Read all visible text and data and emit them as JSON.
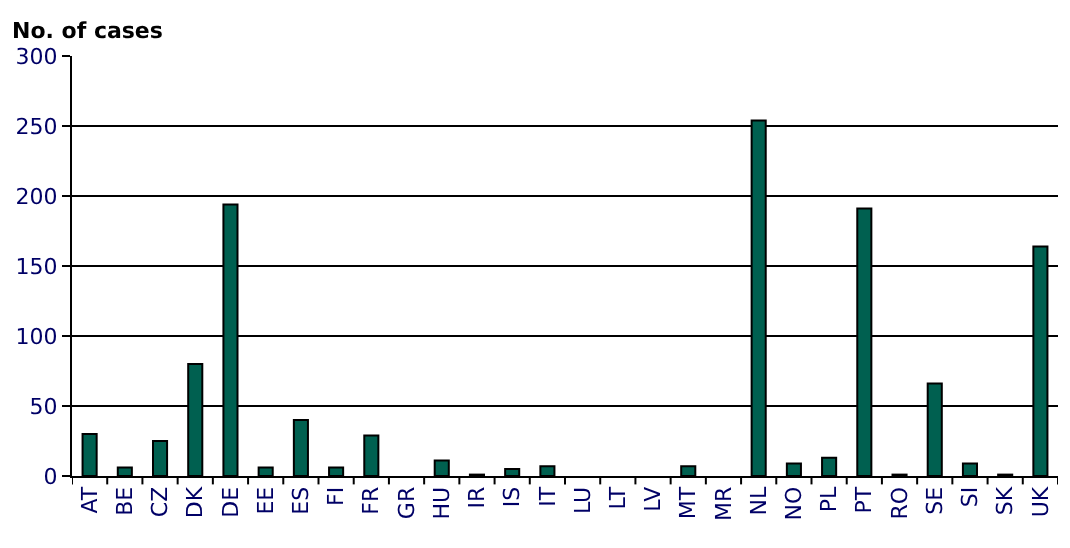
{
  "chart_data": {
    "type": "bar",
    "ylabel": "No. of cases",
    "categories": [
      "AT",
      "BE",
      "CZ",
      "DK",
      "DE",
      "EE",
      "ES",
      "FI",
      "FR",
      "GR",
      "HU",
      "IR",
      "IS",
      "IT",
      "LU",
      "LT",
      "LV",
      "MT",
      "MR",
      "NL",
      "NO",
      "PL",
      "PT",
      "RO",
      "SE",
      "SI",
      "SK",
      "UK"
    ],
    "values": [
      30,
      6,
      25,
      80,
      194,
      6,
      40,
      6,
      29,
      0,
      11,
      1,
      5,
      7,
      0,
      0,
      0,
      7,
      0,
      254,
      9,
      13,
      191,
      1,
      66,
      9,
      1,
      164
    ],
    "color": "#006050",
    "ylim": [
      0,
      300
    ],
    "yticks": [
      0,
      50,
      100,
      150,
      200,
      250,
      300
    ],
    "grid": "y",
    "legend": false
  }
}
